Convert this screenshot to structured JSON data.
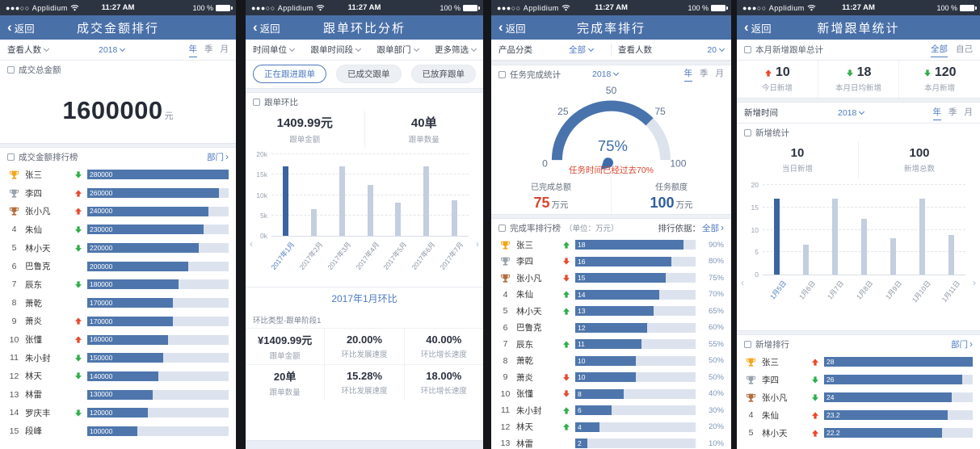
{
  "status_bar": {
    "signal_dots": "●●●○○",
    "carrier": "Applidium",
    "time": "11:27 AM",
    "battery": "100 %"
  },
  "colors": {
    "statusbar": "#2c3442",
    "navbar": "#4a70a8",
    "accent_blue": "#4d7abe",
    "bar_blue": "#4e76ac",
    "bar_selected": "#3a64a1",
    "bar_light": "#c3cedf",
    "track": "#dde3ee",
    "up_red": "#e8492c",
    "down_green": "#2fae4a",
    "warning_red": "#d9442c"
  },
  "screens": [
    {
      "nav": {
        "back": "返回",
        "title": "成交金额排行"
      },
      "filter": {
        "people_label": "查看人数",
        "year": "2018",
        "periods": [
          "年",
          "季",
          "月"
        ],
        "active_period": "年"
      },
      "total": {
        "section_title": "成交总金额",
        "amount": "1600000",
        "unit": "元"
      },
      "ranking": {
        "section_title": "成交金额排行榜",
        "dept_link": "部门",
        "max": 280000,
        "trend_colors": {
          "up": "#e8492c",
          "down": "#2fae4a"
        },
        "rows": [
          {
            "rank": 1,
            "name": "张三",
            "trend": "down",
            "value": "280000"
          },
          {
            "rank": 2,
            "name": "李四",
            "trend": "up",
            "value": "260000"
          },
          {
            "rank": 3,
            "name": "张小凡",
            "trend": "up",
            "value": "240000"
          },
          {
            "rank": 4,
            "name": "朱仙",
            "trend": "down",
            "value": "230000"
          },
          {
            "rank": 5,
            "name": "林小天",
            "trend": "down",
            "value": "220000"
          },
          {
            "rank": 6,
            "name": "巴鲁克",
            "trend": "",
            "value": "200000"
          },
          {
            "rank": 7,
            "name": "辰东",
            "trend": "down",
            "value": "180000"
          },
          {
            "rank": 8,
            "name": "萧乾",
            "trend": "",
            "value": "170000"
          },
          {
            "rank": 9,
            "name": "萧炎",
            "trend": "up",
            "value": "170000"
          },
          {
            "rank": 10,
            "name": "张懂",
            "trend": "up",
            "value": "160000"
          },
          {
            "rank": 11,
            "name": "朱小封",
            "trend": "down",
            "value": "150000"
          },
          {
            "rank": 12,
            "name": "林天",
            "trend": "down",
            "value": "140000"
          },
          {
            "rank": 13,
            "name": "林雷",
            "trend": "",
            "value": "130000"
          },
          {
            "rank": 14,
            "name": "罗庆丰",
            "trend": "down",
            "value": "120000"
          },
          {
            "rank": 15,
            "name": "段峰",
            "trend": "",
            "value": "100000"
          }
        ]
      }
    },
    {
      "nav": {
        "back": "返回",
        "title": "跟单环比分析"
      },
      "filters": [
        "时间单位",
        "跟单时间段",
        "跟单部门",
        "更多筛选"
      ],
      "pills": [
        {
          "label": "正在跟进跟单",
          "active": true
        },
        {
          "label": "已成交跟单",
          "active": false
        },
        {
          "label": "已放弃跟单",
          "active": false
        }
      ],
      "section_title": "跟单环比",
      "summary": [
        {
          "value": "1409.99元",
          "label": "跟单金额"
        },
        {
          "value": "40单",
          "label": "跟单数量"
        }
      ],
      "chart_data": {
        "type": "bar",
        "categories": [
          "2017年1月",
          "2017年2月",
          "2017年3月",
          "2017年4月",
          "2017年5月",
          "2017年6月",
          "2017年7月"
        ],
        "values": [
          17,
          6.5,
          17,
          12.4,
          8.2,
          17,
          8.8
        ],
        "unit": "k",
        "yticks": [
          "20k",
          "15k",
          "10k",
          "5k",
          "0k"
        ],
        "ylim": [
          0,
          20
        ],
        "selected_index": 0,
        "grid": "dashed"
      },
      "period_link": "2017年1月环比",
      "detail": {
        "type_label": "环比类型-跟单阶段1",
        "rows": [
          [
            {
              "value": "¥1409.99元",
              "label": "跟单金额"
            },
            {
              "value": "20.00%",
              "label": "环比发展速度"
            },
            {
              "value": "40.00%",
              "label": "环比增长速度"
            }
          ],
          [
            {
              "value": "20单",
              "label": "跟单数量"
            },
            {
              "value": "15.28%",
              "label": "环比发展速度"
            },
            {
              "value": "18.00%",
              "label": "环比增长速度"
            }
          ]
        ]
      }
    },
    {
      "nav": {
        "back": "返回",
        "title": "完成率排行"
      },
      "filters": [
        {
          "label": "产品分类",
          "value": "全部"
        },
        {
          "label": "查看人数",
          "value": "20"
        }
      ],
      "task": {
        "section_title": "任务完成统计",
        "year": "2018",
        "periods": [
          "年",
          "季",
          "月"
        ],
        "active_period": "年"
      },
      "gauge": {
        "ticks": [
          "0",
          "25",
          "50",
          "75",
          "100"
        ],
        "percent_label": "75%",
        "value": 75,
        "max": 100,
        "warning": "任务时间已经过去70%"
      },
      "totals": [
        {
          "label": "已完成总额",
          "value": "75",
          "unit": "万元",
          "color": "#d9442c"
        },
        {
          "label": "任务额度",
          "value": "100",
          "unit": "万元",
          "color": "#2f5e9e"
        }
      ],
      "ranking": {
        "section_title": "完成率排行榜",
        "unit_note": "（单位：万元）",
        "basis_label": "排行依据：",
        "basis_value": "全部",
        "trend_colors": {
          "up": "#2fae4a",
          "down": "#e8492c"
        },
        "rows": [
          {
            "rank": 1,
            "name": "张三",
            "trend": "up",
            "value": "18",
            "percent": "90%"
          },
          {
            "rank": 2,
            "name": "李四",
            "trend": "down",
            "value": "16",
            "percent": "80%"
          },
          {
            "rank": 3,
            "name": "张小凡",
            "trend": "down",
            "value": "15",
            "percent": "75%"
          },
          {
            "rank": 4,
            "name": "朱仙",
            "trend": "up",
            "value": "14",
            "percent": "70%"
          },
          {
            "rank": 5,
            "name": "林小天",
            "trend": "up",
            "value": "13",
            "percent": "65%"
          },
          {
            "rank": 6,
            "name": "巴鲁克",
            "trend": "",
            "value": "12",
            "percent": "60%"
          },
          {
            "rank": 7,
            "name": "辰东",
            "trend": "up",
            "value": "11",
            "percent": "55%"
          },
          {
            "rank": 8,
            "name": "萧乾",
            "trend": "",
            "value": "10",
            "percent": "50%"
          },
          {
            "rank": 9,
            "name": "萧炎",
            "trend": "down",
            "value": "10",
            "percent": "50%"
          },
          {
            "rank": 10,
            "name": "张懂",
            "trend": "down",
            "value": "8",
            "percent": "40%"
          },
          {
            "rank": 11,
            "name": "朱小封",
            "trend": "up",
            "value": "6",
            "percent": "30%"
          },
          {
            "rank": 12,
            "name": "林天",
            "trend": "up",
            "value": "4",
            "percent": "20%"
          },
          {
            "rank": 13,
            "name": "林雷",
            "trend": "",
            "value": "2",
            "percent": "10%"
          }
        ]
      }
    },
    {
      "nav": {
        "back": "返回",
        "title": "新增跟单统计"
      },
      "month": {
        "section_title": "本月新增跟单总计",
        "tabs": [
          "全部",
          "自己"
        ],
        "active_tab": "全部",
        "stats": [
          {
            "trend": "up",
            "value": "10",
            "label": "今日新增"
          },
          {
            "trend": "down",
            "value": "18",
            "label": "本月日均新增"
          },
          {
            "trend": "down",
            "value": "120",
            "label": "本月新增"
          }
        ]
      },
      "time_row": {
        "label": "新增时间",
        "year": "2018",
        "periods": [
          "年",
          "季",
          "月"
        ],
        "active_period": "年"
      },
      "stat_section": {
        "section_title": "新增统计",
        "stats": [
          {
            "value": "10",
            "label": "当日新增"
          },
          {
            "value": "100",
            "label": "新增总数"
          }
        ]
      },
      "chart_data": {
        "type": "bar",
        "categories": [
          "1月5日",
          "1月6日",
          "1月7日",
          "1月8日",
          "1月9日",
          "1月10日",
          "1月11日"
        ],
        "values": [
          17,
          6.6,
          17,
          12.4,
          8.1,
          17,
          8.8
        ],
        "yticks": [
          "20",
          "15",
          "10",
          "5",
          "0"
        ],
        "ylim": [
          0,
          20
        ],
        "selected_index": 0,
        "grid": "dashed"
      },
      "ranking": {
        "section_title": "新增排行",
        "dept_link": "部门",
        "max": 28,
        "trend_colors": {
          "up": "#e8492c",
          "down": "#2fae4a"
        },
        "rows": [
          {
            "rank": 1,
            "name": "张三",
            "trend": "up",
            "value": "28"
          },
          {
            "rank": 2,
            "name": "李四",
            "trend": "down",
            "value": "26"
          },
          {
            "rank": 3,
            "name": "张小凡",
            "trend": "down",
            "value": "24"
          },
          {
            "rank": 4,
            "name": "朱仙",
            "trend": "up",
            "value": "23.2"
          },
          {
            "rank": 5,
            "name": "林小天",
            "trend": "up",
            "value": "22.2"
          }
        ]
      }
    }
  ]
}
